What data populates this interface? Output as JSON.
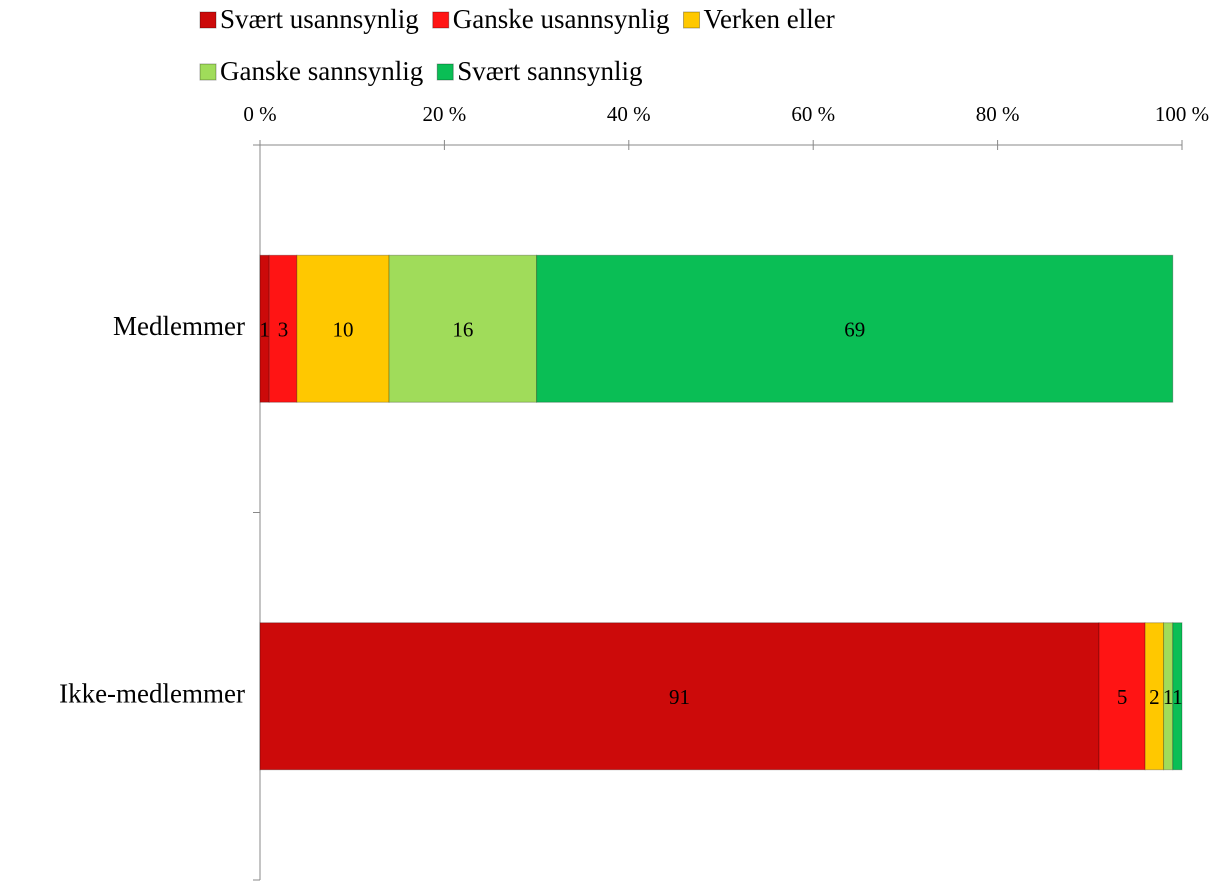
{
  "chart_data": {
    "type": "stacked_bar_horizontal",
    "categories": [
      "Medlemmer",
      "Ikke-medlemmer"
    ],
    "series": [
      {
        "name": "Svært usannsynlig",
        "color": "#cc0a0a",
        "values": [
          1,
          91
        ]
      },
      {
        "name": "Ganske usannsynlig",
        "color": "#ff1414",
        "values": [
          3,
          5
        ]
      },
      {
        "name": "Verken eller",
        "color": "#ffc800",
        "values": [
          10,
          2
        ]
      },
      {
        "name": "Ganske sannsynlig",
        "color": "#a0dc5a",
        "values": [
          16,
          1
        ]
      },
      {
        "name": "Svært sannsynlig",
        "color": "#0abe55",
        "values": [
          69,
          1
        ]
      }
    ],
    "xlim": [
      0,
      100
    ],
    "xticks": [
      {
        "value": 0,
        "label": "0 %"
      },
      {
        "value": 20,
        "label": "20 %"
      },
      {
        "value": 40,
        "label": "40 %"
      },
      {
        "value": 60,
        "label": "60 %"
      },
      {
        "value": 80,
        "label": "80 %"
      },
      {
        "value": 100,
        "label": "100 %"
      }
    ],
    "legend": "top"
  }
}
